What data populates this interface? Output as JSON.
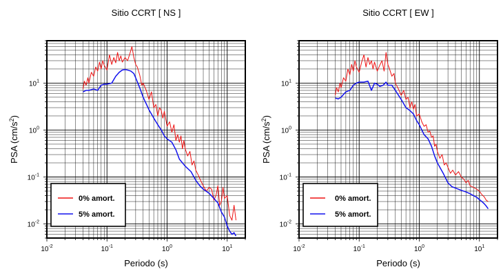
{
  "colors": {
    "series_0": "#ee1111",
    "series_5": "#1111ee",
    "grid": "#000000",
    "background": "#ffffff"
  },
  "chart_data": [
    {
      "type": "line",
      "title": "Sitio CCRT [ NS ]",
      "xlabel": "Periodo (s)",
      "ylabel": "PSA (cm/s2)",
      "xscale": "log",
      "yscale": "log",
      "xlim": [
        0.01,
        20
      ],
      "ylim": [
        0.005,
        80
      ],
      "xticks": [
        {
          "value": 0.01,
          "base": "10",
          "exp": "-2"
        },
        {
          "value": 0.1,
          "base": "10",
          "exp": "-1"
        },
        {
          "value": 1,
          "base": "10",
          "exp": "0"
        },
        {
          "value": 10,
          "base": "10",
          "exp": "1"
        }
      ],
      "yticks": [
        {
          "value": 0.01,
          "base": "10",
          "exp": "-2"
        },
        {
          "value": 0.1,
          "base": "10",
          "exp": "-1"
        },
        {
          "value": 1,
          "base": "10",
          "exp": "0"
        },
        {
          "value": 10,
          "base": "10",
          "exp": "1"
        }
      ],
      "grid": true,
      "legend_position": "bottom-left",
      "series": [
        {
          "name": "0% amort.",
          "color": "#ee1111",
          "x": [
            0.04,
            0.042,
            0.045,
            0.048,
            0.05,
            0.055,
            0.06,
            0.065,
            0.07,
            0.075,
            0.08,
            0.085,
            0.09,
            0.1,
            0.11,
            0.12,
            0.13,
            0.14,
            0.15,
            0.16,
            0.17,
            0.18,
            0.2,
            0.22,
            0.24,
            0.26,
            0.28,
            0.3,
            0.32,
            0.35,
            0.38,
            0.4,
            0.45,
            0.5,
            0.55,
            0.6,
            0.65,
            0.7,
            0.75,
            0.8,
            0.85,
            0.9,
            1.0,
            1.1,
            1.2,
            1.3,
            1.4,
            1.5,
            1.6,
            1.7,
            1.8,
            1.9,
            2.0,
            2.2,
            2.4,
            2.6,
            2.8,
            3.0,
            3.3,
            3.6,
            4.0,
            4.5,
            5.0,
            5.5,
            6.0,
            6.5,
            7.0,
            7.5,
            8.0,
            8.5,
            9.0,
            10.0,
            11.0,
            12.0,
            13.0,
            14.0
          ],
          "y": [
            7.5,
            11.0,
            9.0,
            13.0,
            10.0,
            17.0,
            14.0,
            22.0,
            18.0,
            28.0,
            20.0,
            30.0,
            24.0,
            19.0,
            40.0,
            25.0,
            35.0,
            27.0,
            45.0,
            30.0,
            38.0,
            28.0,
            35.0,
            30.0,
            42.0,
            60.0,
            35.0,
            25.0,
            22.0,
            15.0,
            9.0,
            10.0,
            7.0,
            4.5,
            6.5,
            3.0,
            3.5,
            2.0,
            3.0,
            2.6,
            1.8,
            2.5,
            1.2,
            1.5,
            0.9,
            1.3,
            0.6,
            0.8,
            0.55,
            0.75,
            0.4,
            0.6,
            0.4,
            0.28,
            0.35,
            0.18,
            0.22,
            0.14,
            0.11,
            0.085,
            0.065,
            0.05,
            0.06,
            0.055,
            0.032,
            0.04,
            0.065,
            0.025,
            0.03,
            0.06,
            0.035,
            0.04,
            0.015,
            0.012,
            0.025,
            0.012
          ]
        },
        {
          "name": "5% amort.",
          "color": "#1111ee",
          "x": [
            0.04,
            0.045,
            0.05,
            0.06,
            0.07,
            0.08,
            0.09,
            0.1,
            0.12,
            0.14,
            0.16,
            0.18,
            0.2,
            0.22,
            0.25,
            0.28,
            0.3,
            0.35,
            0.4,
            0.5,
            0.6,
            0.7,
            0.8,
            0.9,
            1.0,
            1.2,
            1.4,
            1.6,
            1.8,
            2.0,
            2.5,
            3.0,
            3.5,
            4.0,
            5.0,
            6.0,
            7.0,
            8.0,
            9.0,
            10.0,
            11.0,
            12.0,
            13.0,
            14.0
          ],
          "y": [
            6.5,
            7.0,
            7.0,
            7.5,
            7.0,
            9.0,
            9.5,
            9.5,
            10.0,
            14.0,
            17.0,
            19.0,
            19.5,
            19.0,
            18.0,
            16.0,
            13.0,
            8.0,
            5.0,
            2.7,
            1.8,
            1.3,
            1.0,
            0.75,
            0.65,
            0.55,
            0.38,
            0.24,
            0.2,
            0.17,
            0.13,
            0.085,
            0.065,
            0.055,
            0.045,
            0.035,
            0.028,
            0.018,
            0.014,
            0.009,
            0.007,
            0.006,
            0.0065,
            0.0055
          ]
        }
      ]
    },
    {
      "type": "line",
      "title": "Sitio CCRT [ EW ]",
      "xlabel": "Periodo (s)",
      "ylabel": "PSA (cm/s2)",
      "xscale": "log",
      "yscale": "log",
      "xlim": [
        0.01,
        20
      ],
      "ylim": [
        0.005,
        80
      ],
      "xticks": [
        {
          "value": 0.01,
          "base": "10",
          "exp": "-2"
        },
        {
          "value": 0.1,
          "base": "10",
          "exp": "-1"
        },
        {
          "value": 1,
          "base": "10",
          "exp": "0"
        },
        {
          "value": 10,
          "base": "10",
          "exp": "1"
        }
      ],
      "yticks": [
        {
          "value": 0.01,
          "base": "10",
          "exp": "-2"
        },
        {
          "value": 0.1,
          "base": "10",
          "exp": "-1"
        },
        {
          "value": 1,
          "base": "10",
          "exp": "0"
        },
        {
          "value": 10,
          "base": "10",
          "exp": "1"
        }
      ],
      "grid": true,
      "legend_position": "bottom-left",
      "series": [
        {
          "name": "0% amort.",
          "color": "#ee1111",
          "x": [
            0.04,
            0.042,
            0.045,
            0.048,
            0.05,
            0.055,
            0.06,
            0.065,
            0.07,
            0.075,
            0.08,
            0.085,
            0.09,
            0.1,
            0.11,
            0.12,
            0.13,
            0.14,
            0.15,
            0.16,
            0.17,
            0.18,
            0.2,
            0.22,
            0.24,
            0.26,
            0.28,
            0.3,
            0.32,
            0.35,
            0.38,
            0.4,
            0.45,
            0.5,
            0.55,
            0.6,
            0.65,
            0.7,
            0.75,
            0.8,
            0.85,
            0.9,
            1.0,
            1.1,
            1.2,
            1.3,
            1.4,
            1.5,
            1.6,
            1.7,
            1.8,
            1.9,
            2.0,
            2.2,
            2.4,
            2.6,
            2.8,
            3.0,
            3.3,
            3.6,
            4.0,
            4.5,
            5.0,
            5.5,
            6.0,
            6.5,
            7.0,
            8.0,
            9.0,
            10.0,
            11.0,
            12.0,
            13.0,
            14.0
          ],
          "y": [
            5.5,
            8.0,
            6.5,
            10.0,
            8.0,
            13.0,
            11.0,
            20.0,
            15.0,
            25.0,
            18.0,
            30.0,
            22.0,
            17.0,
            28.0,
            40.0,
            22.0,
            35.0,
            25.0,
            30.0,
            20.0,
            28.0,
            18.0,
            24.0,
            30.0,
            18.0,
            45.0,
            25.0,
            20.0,
            14.0,
            16.0,
            10.0,
            7.5,
            5.5,
            7.0,
            4.5,
            5.0,
            3.0,
            4.0,
            2.8,
            3.5,
            2.0,
            2.2,
            1.5,
            1.2,
            1.3,
            0.9,
            0.95,
            0.7,
            0.75,
            0.45,
            0.5,
            0.35,
            0.25,
            0.3,
            0.18,
            0.2,
            0.16,
            0.12,
            0.14,
            0.11,
            0.13,
            0.1,
            0.09,
            0.075,
            0.085,
            0.065,
            0.06,
            0.055,
            0.05,
            0.042,
            0.038,
            0.032,
            0.03
          ]
        },
        {
          "name": "5% amort.",
          "color": "#1111ee",
          "x": [
            0.04,
            0.045,
            0.05,
            0.06,
            0.07,
            0.08,
            0.09,
            0.1,
            0.12,
            0.14,
            0.16,
            0.18,
            0.2,
            0.22,
            0.25,
            0.28,
            0.3,
            0.35,
            0.4,
            0.5,
            0.6,
            0.7,
            0.8,
            0.9,
            1.0,
            1.2,
            1.4,
            1.6,
            1.8,
            2.0,
            2.5,
            3.0,
            3.5,
            4.0,
            5.0,
            6.0,
            7.0,
            8.0,
            9.0,
            10.0,
            11.0,
            12.0,
            13.0,
            14.0
          ],
          "y": [
            4.8,
            4.6,
            5.0,
            6.5,
            7.0,
            9.0,
            10.0,
            10.5,
            10.5,
            11.0,
            7.0,
            10.0,
            9.5,
            8.5,
            9.0,
            10.5,
            9.0,
            9.0,
            7.0,
            4.5,
            3.0,
            2.6,
            2.2,
            1.6,
            1.3,
            0.8,
            0.65,
            0.45,
            0.28,
            0.2,
            0.12,
            0.075,
            0.062,
            0.058,
            0.052,
            0.048,
            0.044,
            0.04,
            0.037,
            0.033,
            0.03,
            0.027,
            0.024,
            0.021
          ]
        }
      ]
    }
  ]
}
